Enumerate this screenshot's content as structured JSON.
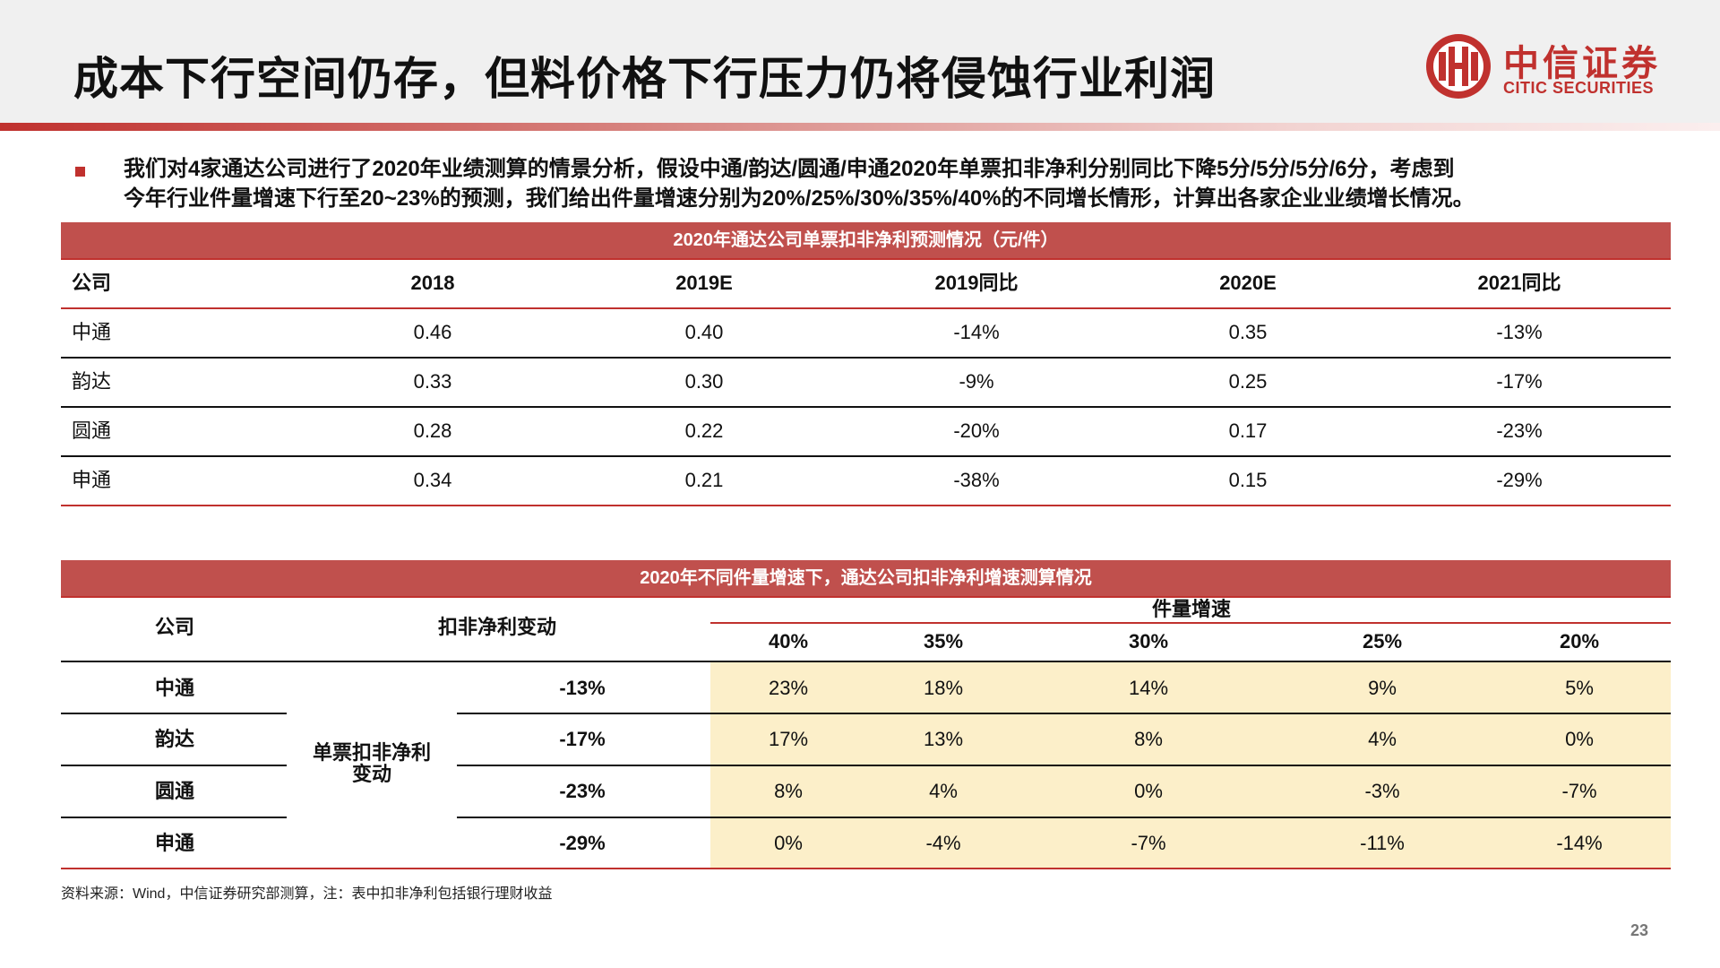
{
  "title": "成本下行空间仍存，但料价格下行压力仍将侵蚀行业利润",
  "logo": {
    "cn": "中信证券",
    "en": "CITIC SECURITIES",
    "icon": "citic-emblem-icon",
    "color": "#c0312e"
  },
  "intro": [
    "我们对4家通达公司进行了2020年业绩测算的情景分析，假设中通/韵达/圆通/申通2020年单票扣非净利分别同比下降5分/5分/5分/6分，考虑到",
    "今年行业件量增速下行至20~23%的预测，我们给出件量增速分别为20%/25%/30%/35%/40%的不同增长情形，计算出各家企业业绩增长情况。"
  ],
  "table1": {
    "title": "2020年通达公司单票扣非净利预测情况（元/件）",
    "headers": [
      "公司",
      "2018",
      "2019E",
      "2019同比",
      "2020E",
      "2021同比"
    ],
    "rows": [
      [
        "中通",
        "0.46",
        "0.40",
        "-14%",
        "0.35",
        "-13%"
      ],
      [
        "韵达",
        "0.33",
        "0.30",
        "-9%",
        "0.25",
        "-17%"
      ],
      [
        "圆通",
        "0.28",
        "0.22",
        "-20%",
        "0.17",
        "-23%"
      ],
      [
        "申通",
        "0.34",
        "0.21",
        "-38%",
        "0.15",
        "-29%"
      ]
    ]
  },
  "table2": {
    "title": "2020年不同件量增速下，通达公司扣非净利增速测算情况",
    "header_company": "公司",
    "header_change": "扣非净利变动",
    "header_growth": "件量增速",
    "growth_cols": [
      "40%",
      "35%",
      "30%",
      "25%",
      "20%"
    ],
    "merged_label_line1": "单票扣非净利",
    "merged_label_line2": "变动",
    "rows": [
      {
        "company": "中通",
        "change": "-13%",
        "values": [
          "23%",
          "18%",
          "14%",
          "9%",
          "5%"
        ]
      },
      {
        "company": "韵达",
        "change": "-17%",
        "values": [
          "17%",
          "13%",
          "8%",
          "4%",
          "0%"
        ]
      },
      {
        "company": "圆通",
        "change": "-23%",
        "values": [
          "8%",
          "4%",
          "0%",
          "-3%",
          "-7%"
        ]
      },
      {
        "company": "申通",
        "change": "-29%",
        "values": [
          "0%",
          "-4%",
          "-7%",
          "-11%",
          "-14%"
        ]
      }
    ],
    "highlight_color": "#fcefc9"
  },
  "footnote": "资料来源：Wind，中信证券研究部测算，注：表中扣非净利包括银行理财收益",
  "page_number": "23",
  "colors": {
    "accent": "#c0312e",
    "band": "#c0504d"
  }
}
